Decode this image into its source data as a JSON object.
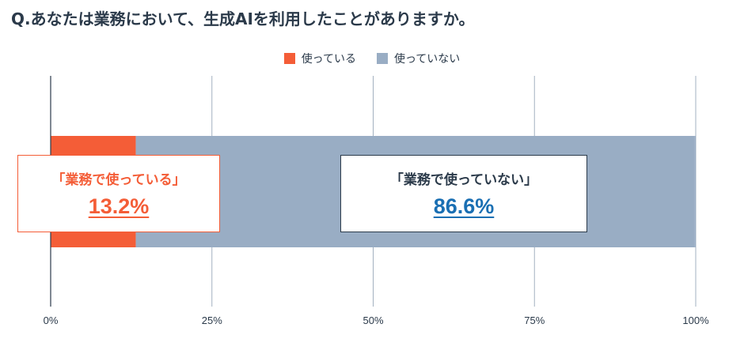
{
  "title": "Q.あなたは業務において、生成AIを利用したことがありますか。",
  "colors": {
    "used": "#f45d37",
    "not_used": "#99adc4",
    "grid": "#a3b1c0",
    "axis": "#2b3a4a"
  },
  "legend": [
    {
      "label": "使っている",
      "color": "#f45d37"
    },
    {
      "label": "使っていない",
      "color": "#99adc4"
    }
  ],
  "callouts": {
    "used": {
      "label": "「業務で使っている」",
      "value": "13.2%"
    },
    "not_used": {
      "label": "「業務で使っていない」",
      "value": "86.6%"
    }
  },
  "chart_data": {
    "type": "bar",
    "orientation": "horizontal",
    "stacked": true,
    "categories": [
      ""
    ],
    "series": [
      {
        "name": "使っている",
        "values": [
          13.2
        ]
      },
      {
        "name": "使っていない",
        "values": [
          86.6
        ]
      }
    ],
    "xlim": [
      0,
      100
    ],
    "xticks": [
      0,
      25,
      50,
      75,
      100
    ],
    "xtick_labels": [
      "0%",
      "25%",
      "50%",
      "75%",
      "100%"
    ],
    "grid": true,
    "legend_position": "top-center"
  }
}
